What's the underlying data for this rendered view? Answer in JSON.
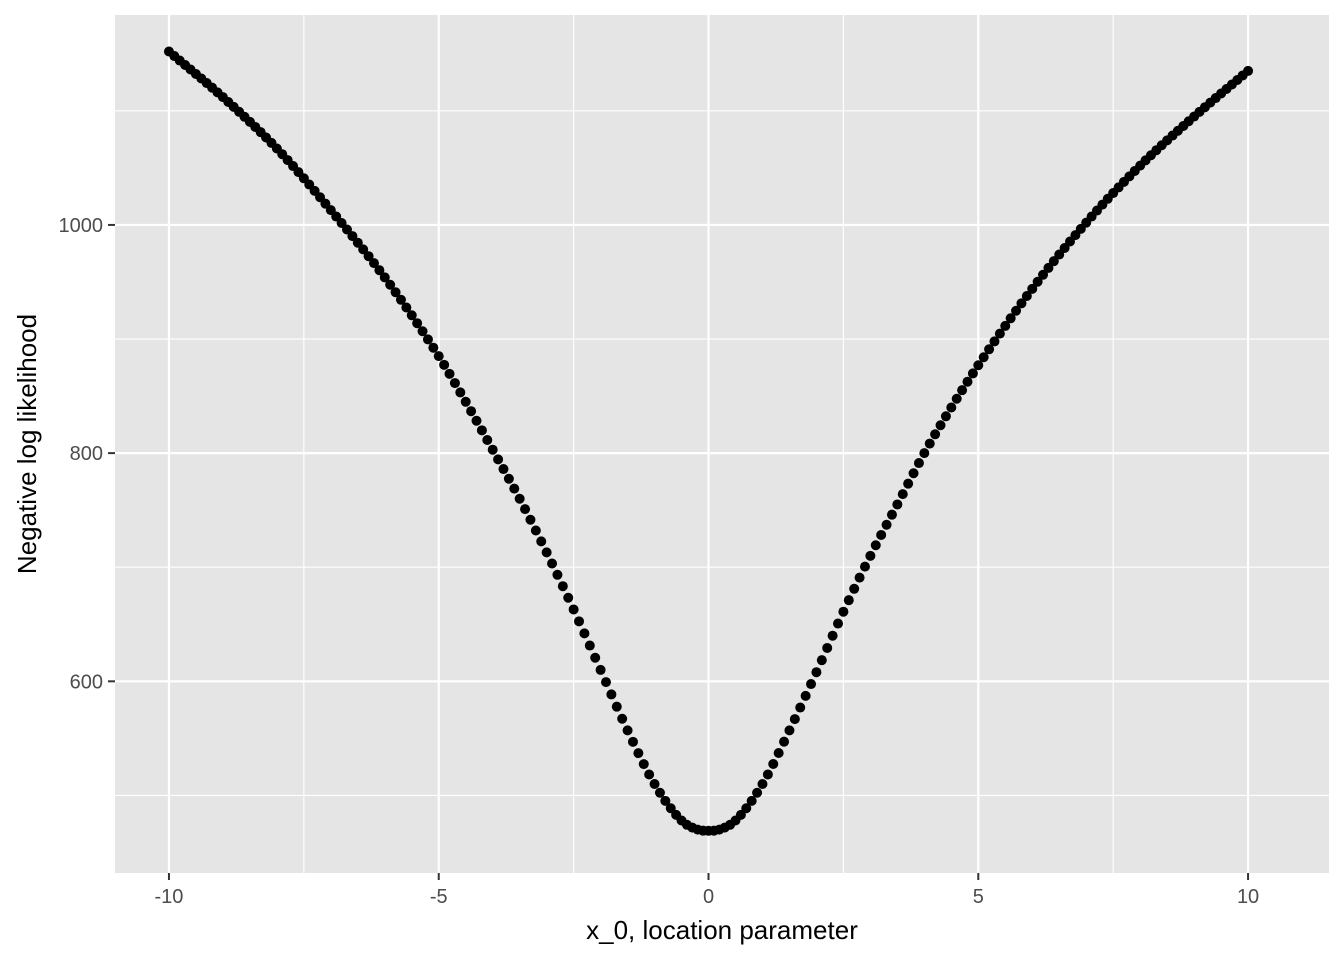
{
  "chart_data": {
    "type": "scatter",
    "title": "",
    "xlabel": "x_0, location parameter",
    "ylabel": "Negative log likelihood",
    "xlim": [
      -11,
      11.5
    ],
    "ylim": [
      432,
      1184
    ],
    "x_ticks": [
      -10,
      -5,
      0,
      5,
      10
    ],
    "x_tick_labels": [
      "-10",
      "-5",
      "0",
      "5",
      "10"
    ],
    "y_ticks": [
      600,
      800,
      1000
    ],
    "y_tick_labels": [
      "600",
      "800",
      "1000"
    ],
    "x_minor_ticks": [
      -7.5,
      -2.5,
      2.5,
      7.5
    ],
    "y_minor_ticks": [
      500,
      700,
      900,
      1100
    ],
    "grid": true,
    "legend": "none",
    "colors": {
      "panel": "#e5e5e5",
      "grid": "#ffffff",
      "points": "#000000"
    },
    "series": [
      {
        "x": [
          -10,
          -9,
          -8,
          -7,
          -6,
          -5,
          -4.5,
          -4,
          -3.5,
          -3,
          -2.5,
          -2,
          -1.5,
          -1,
          -0.5,
          -0.2,
          0,
          0.2,
          0.5,
          1,
          1.5,
          2,
          2.5,
          3,
          3.5,
          4,
          4.5,
          5,
          6,
          7,
          8,
          9,
          10
        ],
        "y": [
          1152,
          1112,
          1067,
          1013,
          954,
          885,
          845,
          803,
          760,
          713,
          663,
          610,
          557,
          510,
          478,
          470,
          469,
          470,
          478,
          510,
          557,
          608,
          661,
          710,
          755,
          800,
          840,
          877,
          944,
          1002,
          1052,
          1095,
          1135
        ]
      }
    ]
  }
}
